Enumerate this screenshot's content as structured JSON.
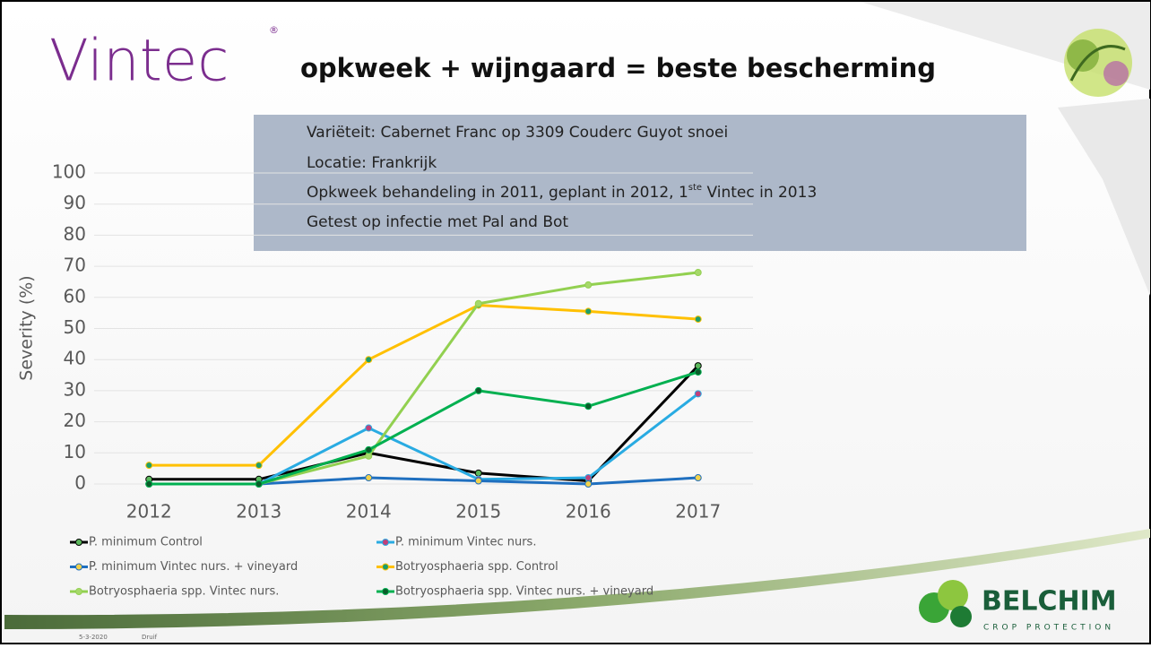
{
  "slide": {
    "logo": "Vintec",
    "logo_mark": "®",
    "title": "opkweek + wijngaard = beste bescherming",
    "info_lines": [
      "Variëteit: Cabernet Franc op 3309 Couderc Guyot snoei",
      "Locatie: Frankrijk"
    ],
    "info_line3": {
      "before": "Opkweek behandeling in 2011, geplant in 2012, 1",
      "sup": "ste",
      "after": " Vintec in 2013"
    },
    "info_line4": "Getest op infectie met Pal and Bot",
    "brand": "BELCHIM",
    "brand_sub": "CROP PROTECTION",
    "date": "5-3-2020",
    "footer": "Druif"
  },
  "chart_data": {
    "type": "line",
    "y_label": "Severity (%)",
    "categories": [
      "2012",
      "2013",
      "2014",
      "2015",
      "2016",
      "2017"
    ],
    "ylim": [
      0,
      100
    ],
    "yticks": [
      0,
      10,
      20,
      30,
      40,
      50,
      60,
      70,
      80,
      90,
      100
    ],
    "grid": true,
    "series": [
      {
        "name": "P. minimum Control",
        "color": "#000000",
        "marker_color": "#5cb85c",
        "values": [
          1.5,
          1.5,
          10,
          3.5,
          1,
          38
        ]
      },
      {
        "name": "P. minimum Vintec nurs.",
        "color": "#29abe2",
        "marker_color": "#c0407a",
        "values": [
          0,
          0,
          18,
          1.5,
          2,
          29
        ]
      },
      {
        "name": "P. minimum Vintec nurs. + vineyard",
        "color": "#1f6fbf",
        "marker_color": "#f2d24b",
        "values": [
          0,
          0,
          2,
          1,
          0,
          2
        ]
      },
      {
        "name": "Botryosphaeria spp. Control",
        "color": "#ffc000",
        "marker_color": "#1e9e6a",
        "values": [
          6,
          6,
          40,
          57.5,
          55.5,
          53
        ]
      },
      {
        "name": "Botryosphaeria spp. Vintec nurs.",
        "color": "#92d050",
        "marker_color": "#a6d86a",
        "values": [
          0,
          0,
          9,
          58,
          64,
          68
        ]
      },
      {
        "name": "Botryosphaeria spp. Vintec nurs. + vineyard",
        "color": "#00b050",
        "marker_color": "#0a5c2a",
        "values": [
          0,
          0,
          11,
          30,
          25,
          36
        ]
      }
    ]
  }
}
